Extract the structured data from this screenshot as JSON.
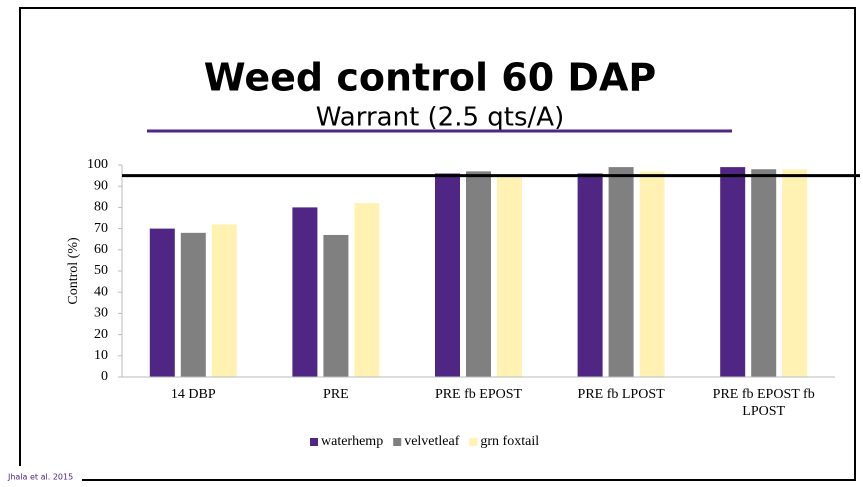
{
  "chart_data": {
    "type": "bar",
    "title": "Weed control 60 DAP",
    "subtitle": "Warrant (2.5 qts/A)",
    "y_label": "Control (%)",
    "source": "Jhala et al. 2015",
    "categories": [
      "14 DBP",
      "PRE",
      "PRE fb EPOST",
      "PRE fb LPOST",
      "PRE fb EPOST fb LPOST"
    ],
    "series": [
      {
        "name": "waterhemp",
        "color": "#4f2683",
        "values": [
          70,
          80,
          96,
          96,
          99
        ]
      },
      {
        "name": "velvetleaf",
        "color": "#808080",
        "values": [
          68,
          67,
          97,
          99,
          98
        ]
      },
      {
        "name": "grn foxtail",
        "color": "#fff2b3",
        "values": [
          72,
          82,
          95,
          97,
          98
        ]
      }
    ],
    "reference_line": 95,
    "ylim": [
      0,
      100
    ],
    "yticks": [
      0,
      10,
      20,
      30,
      40,
      50,
      60,
      70,
      80,
      90,
      100
    ],
    "legend": "bottom"
  }
}
